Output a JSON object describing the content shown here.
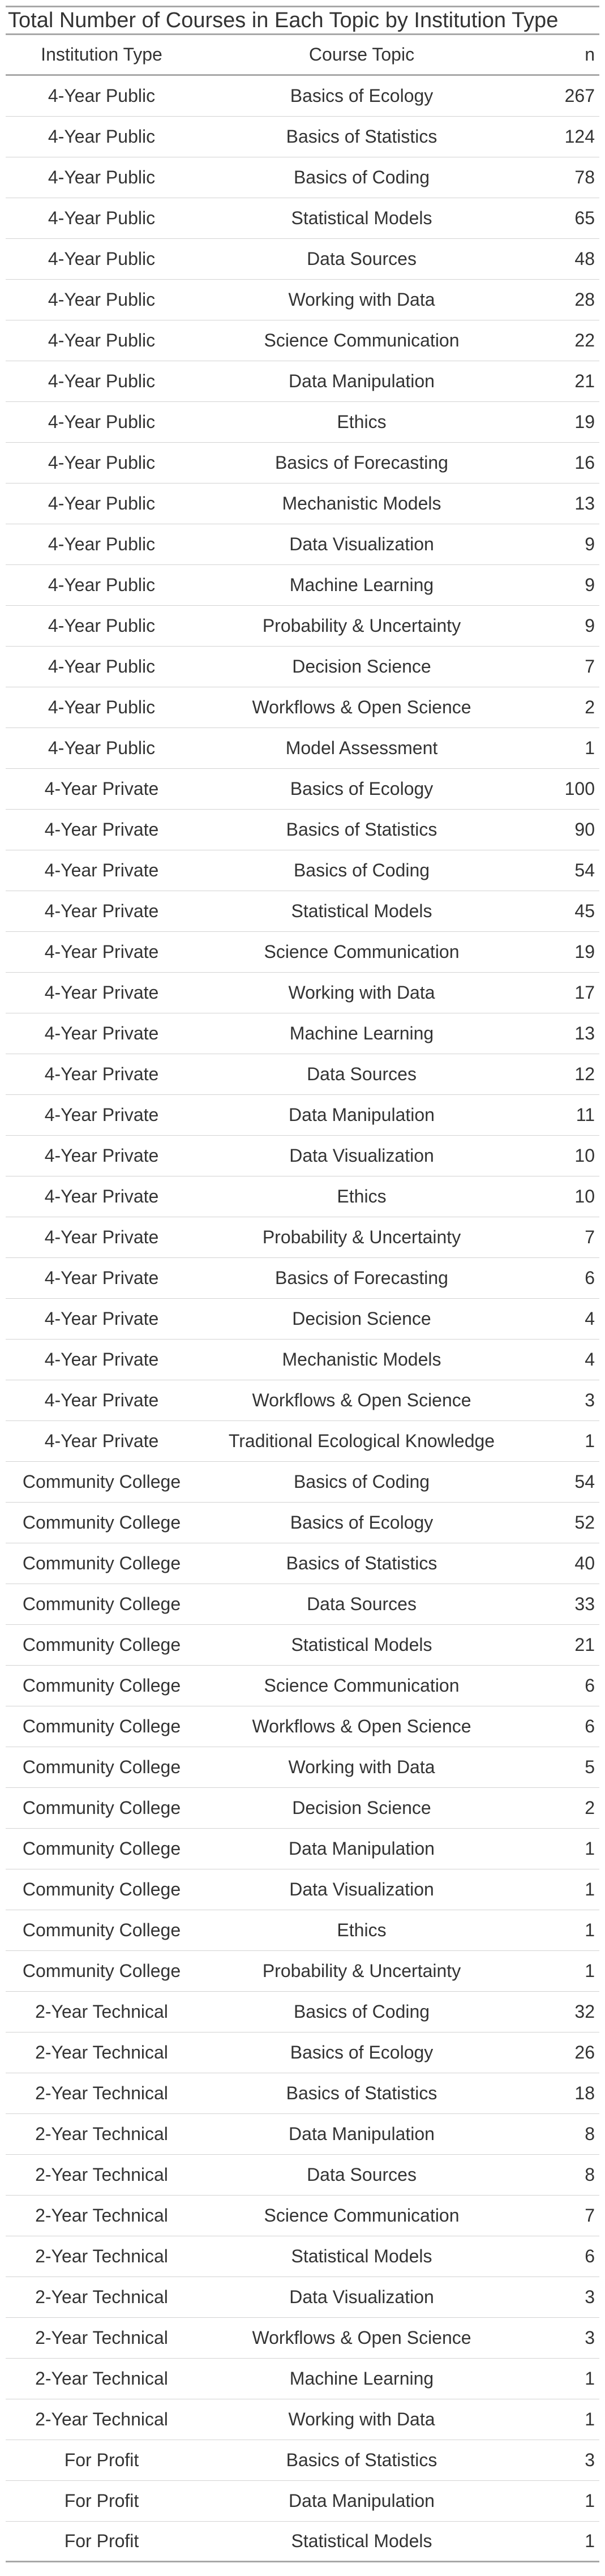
{
  "chart_data": {
    "type": "table",
    "title": "Total Number of Courses in Each Topic by Institution Type",
    "columns": [
      "Institution Type",
      "Course Topic",
      "n"
    ],
    "rows": [
      [
        "4-Year Public",
        "Basics of Ecology",
        "267"
      ],
      [
        "4-Year Public",
        "Basics of Statistics",
        "124"
      ],
      [
        "4-Year Public",
        "Basics of Coding",
        "78"
      ],
      [
        "4-Year Public",
        "Statistical Models",
        "65"
      ],
      [
        "4-Year Public",
        "Data Sources",
        "48"
      ],
      [
        "4-Year Public",
        "Working with Data",
        "28"
      ],
      [
        "4-Year Public",
        "Science Communication",
        "22"
      ],
      [
        "4-Year Public",
        "Data Manipulation",
        "21"
      ],
      [
        "4-Year Public",
        "Ethics",
        "19"
      ],
      [
        "4-Year Public",
        "Basics of Forecasting",
        "16"
      ],
      [
        "4-Year Public",
        "Mechanistic Models",
        "13"
      ],
      [
        "4-Year Public",
        "Data Visualization",
        "9"
      ],
      [
        "4-Year Public",
        "Machine Learning",
        "9"
      ],
      [
        "4-Year Public",
        "Probability & Uncertainty",
        "9"
      ],
      [
        "4-Year Public",
        "Decision Science",
        "7"
      ],
      [
        "4-Year Public",
        "Workflows & Open Science",
        "2"
      ],
      [
        "4-Year Public",
        "Model Assessment",
        "1"
      ],
      [
        "4-Year Private",
        "Basics of Ecology",
        "100"
      ],
      [
        "4-Year Private",
        "Basics of Statistics",
        "90"
      ],
      [
        "4-Year Private",
        "Basics of Coding",
        "54"
      ],
      [
        "4-Year Private",
        "Statistical Models",
        "45"
      ],
      [
        "4-Year Private",
        "Science Communication",
        "19"
      ],
      [
        "4-Year Private",
        "Working with Data",
        "17"
      ],
      [
        "4-Year Private",
        "Machine Learning",
        "13"
      ],
      [
        "4-Year Private",
        "Data Sources",
        "12"
      ],
      [
        "4-Year Private",
        "Data Manipulation",
        "11"
      ],
      [
        "4-Year Private",
        "Data Visualization",
        "10"
      ],
      [
        "4-Year Private",
        "Ethics",
        "10"
      ],
      [
        "4-Year Private",
        "Probability & Uncertainty",
        "7"
      ],
      [
        "4-Year Private",
        "Basics of Forecasting",
        "6"
      ],
      [
        "4-Year Private",
        "Decision Science",
        "4"
      ],
      [
        "4-Year Private",
        "Mechanistic Models",
        "4"
      ],
      [
        "4-Year Private",
        "Workflows & Open Science",
        "3"
      ],
      [
        "4-Year Private",
        "Traditional Ecological Knowledge",
        "1"
      ],
      [
        "Community College",
        "Basics of Coding",
        "54"
      ],
      [
        "Community College",
        "Basics of Ecology",
        "52"
      ],
      [
        "Community College",
        "Basics of Statistics",
        "40"
      ],
      [
        "Community College",
        "Data Sources",
        "33"
      ],
      [
        "Community College",
        "Statistical Models",
        "21"
      ],
      [
        "Community College",
        "Science Communication",
        "6"
      ],
      [
        "Community College",
        "Workflows & Open Science",
        "6"
      ],
      [
        "Community College",
        "Working with Data",
        "5"
      ],
      [
        "Community College",
        "Decision Science",
        "2"
      ],
      [
        "Community College",
        "Data Manipulation",
        "1"
      ],
      [
        "Community College",
        "Data Visualization",
        "1"
      ],
      [
        "Community College",
        "Ethics",
        "1"
      ],
      [
        "Community College",
        "Probability & Uncertainty",
        "1"
      ],
      [
        "2-Year Technical",
        "Basics of Coding",
        "32"
      ],
      [
        "2-Year Technical",
        "Basics of Ecology",
        "26"
      ],
      [
        "2-Year Technical",
        "Basics of Statistics",
        "18"
      ],
      [
        "2-Year Technical",
        "Data Manipulation",
        "8"
      ],
      [
        "2-Year Technical",
        "Data Sources",
        "8"
      ],
      [
        "2-Year Technical",
        "Science Communication",
        "7"
      ],
      [
        "2-Year Technical",
        "Statistical Models",
        "6"
      ],
      [
        "2-Year Technical",
        "Data Visualization",
        "3"
      ],
      [
        "2-Year Technical",
        "Workflows & Open Science",
        "3"
      ],
      [
        "2-Year Technical",
        "Machine Learning",
        "1"
      ],
      [
        "2-Year Technical",
        "Working with Data",
        "1"
      ],
      [
        "For Profit",
        "Basics of Statistics",
        "3"
      ],
      [
        "For Profit",
        "Data Manipulation",
        "1"
      ],
      [
        "For Profit",
        "Statistical Models",
        "1"
      ]
    ]
  }
}
